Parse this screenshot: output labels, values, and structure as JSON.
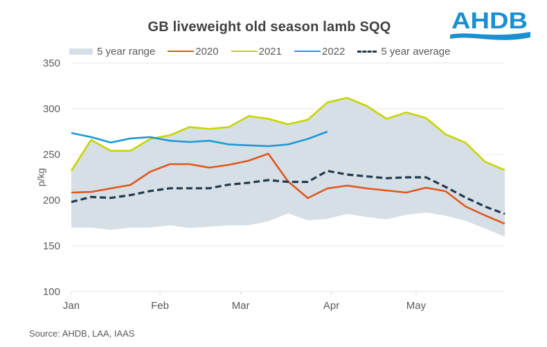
{
  "chart_data": {
    "type": "line",
    "title": "GB liveweight  old season lamb SQQ",
    "xlabel": "",
    "ylabel": "p/kg",
    "ylim": [
      100,
      350
    ],
    "yticks": [
      100,
      150,
      200,
      250,
      300,
      350
    ],
    "grid": true,
    "legend_position": "top",
    "x_tick_labels": [
      "Jan",
      "Feb",
      "Mar",
      "Apr",
      "May"
    ],
    "x_tick_weeks": [
      0,
      4.5,
      8.6,
      13.2,
      17.5
    ],
    "n_weeks": 23,
    "range": {
      "name": "5 year range",
      "color": "#d6dfe5",
      "upper": [
        232,
        266,
        254,
        254,
        267,
        271,
        280,
        278,
        280,
        292,
        289,
        283,
        288,
        307,
        312,
        303,
        289,
        296,
        290,
        272,
        263,
        242,
        233
      ],
      "lower": [
        170,
        170,
        167.5,
        170,
        170,
        172.5,
        169.5,
        171,
        172.5,
        172.5,
        177,
        185.5,
        178,
        179.5,
        185,
        181.5,
        179,
        184,
        186.5,
        183,
        177.5,
        169,
        160
      ]
    },
    "series": [
      {
        "name": "2020",
        "color": "#e0561b",
        "style": "solid",
        "values": [
          208.3,
          209,
          212.9,
          216.7,
          231,
          239.4,
          239.4,
          235.6,
          238.6,
          243.2,
          250.8,
          220.5,
          202.3,
          212.9,
          215.9,
          212.9,
          210.6,
          208.3,
          213.6,
          209.8,
          193.2,
          183.3,
          174.2
        ]
      },
      {
        "name": "2021",
        "color": "#c8d400",
        "style": "solid",
        "values": [
          232,
          266,
          254,
          254,
          267,
          271,
          280,
          278,
          280,
          292,
          289,
          283,
          288,
          307,
          312,
          303,
          289,
          296,
          290,
          272,
          263,
          242,
          233
        ]
      },
      {
        "name": "2022",
        "color": "#1a9ad6",
        "style": "solid",
        "values": [
          273.5,
          269,
          263,
          267.5,
          269,
          265,
          263.6,
          265,
          261,
          260,
          259,
          261,
          267,
          275
        ]
      },
      {
        "name": "5 year average",
        "color": "#1f3a4d",
        "style": "dashed",
        "values": [
          198,
          203.5,
          202.5,
          205.5,
          210,
          213,
          213,
          213,
          217,
          219,
          222,
          220,
          220,
          232,
          228,
          226,
          224,
          225,
          225,
          214.5,
          203,
          193,
          185
        ]
      }
    ]
  },
  "legend": {
    "range_label": "5 year range",
    "s2020_label": "2020",
    "s2021_label": "2021",
    "s2022_label": "2022",
    "avg_label": "5 year average"
  },
  "logo": {
    "text": "AHDB",
    "color": "#1a8fd1"
  },
  "source": "Source: AHDB, LAA, IAAS"
}
